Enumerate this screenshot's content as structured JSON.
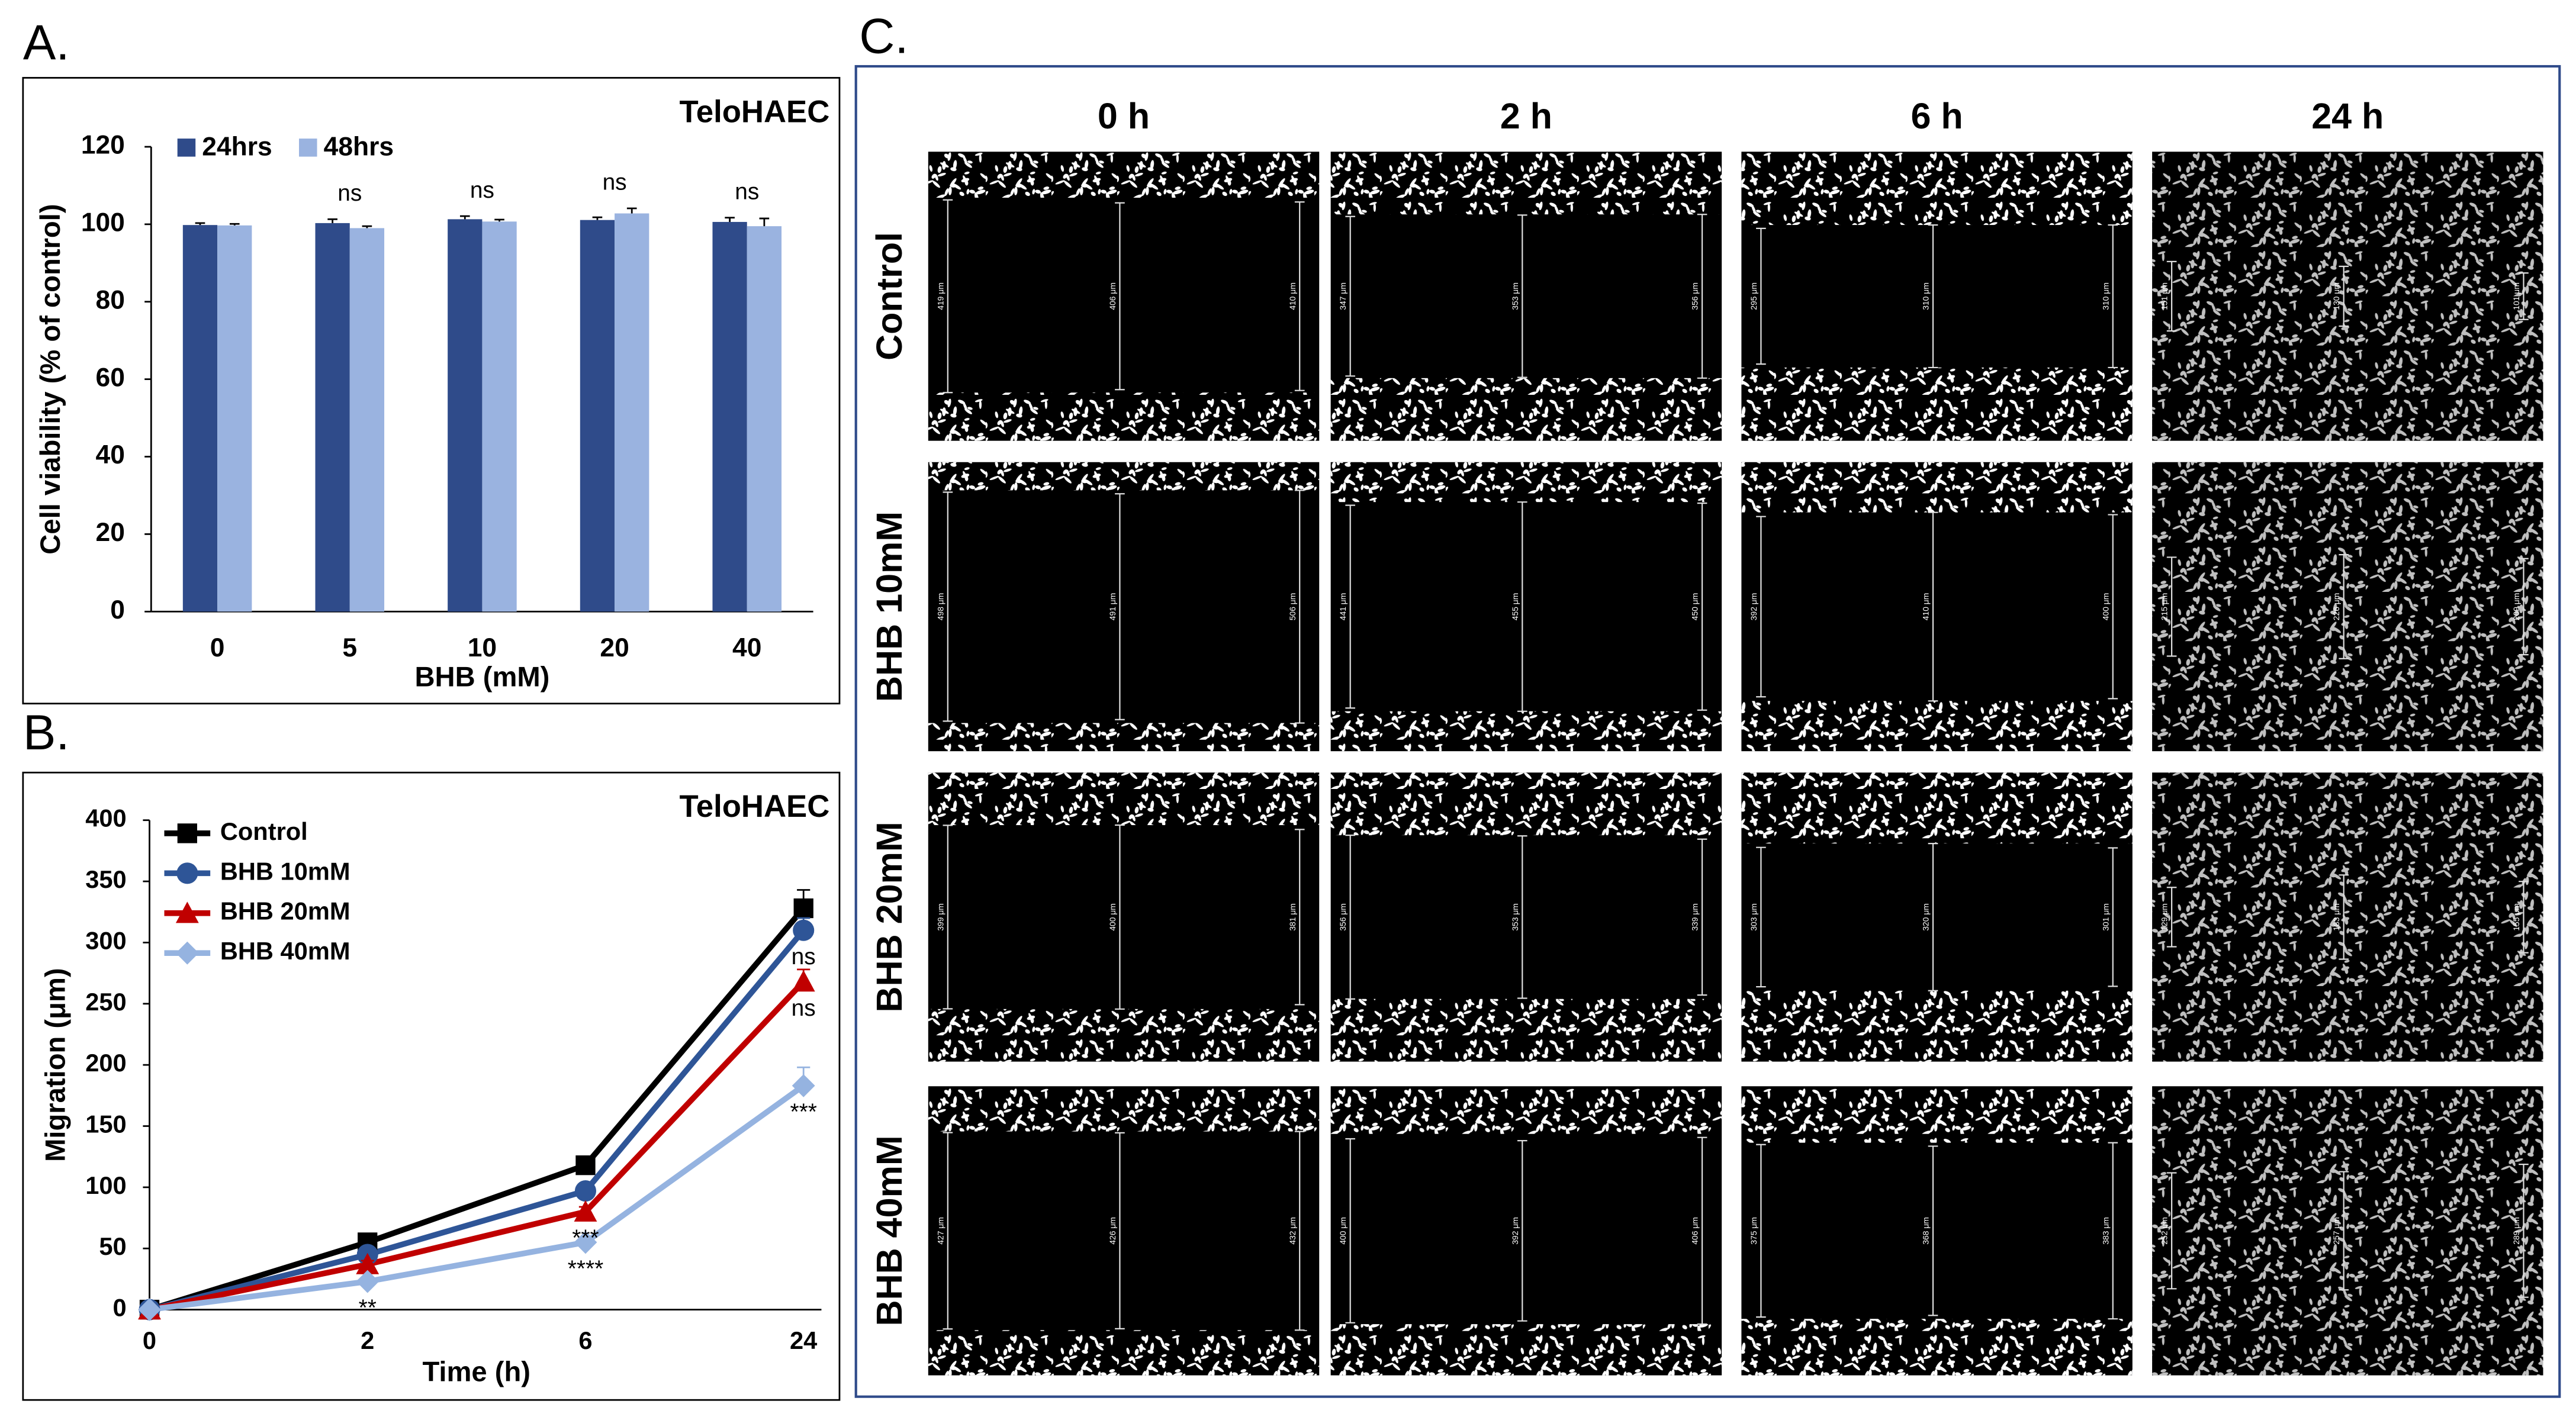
{
  "figure": {
    "panel_labels": [
      "A.",
      "B.",
      "C."
    ]
  },
  "chart_data": [
    {
      "type": "bar",
      "title": "TeloHAEC",
      "x_label": "BHB (mM)",
      "y_label": "Cell viability (% of control)",
      "categories": [
        "0",
        "5",
        "10",
        "20",
        "40"
      ],
      "series": [
        {
          "name": "24hrs",
          "color": "#2f4b8a",
          "values": [
            99.8,
            100.3,
            101.3,
            101.1,
            100.6
          ],
          "errors": [
            0.5,
            1.0,
            0.8,
            0.7,
            1.1
          ]
        },
        {
          "name": "48hrs",
          "color": "#9ab3e0",
          "values": [
            99.7,
            99.0,
            100.7,
            102.8,
            99.5
          ],
          "errors": [
            0.4,
            0.5,
            0.5,
            1.3,
            2.0
          ]
        }
      ],
      "annotations": [
        null,
        "ns",
        "ns",
        "ns",
        "ns"
      ],
      "ylim": [
        0,
        120
      ],
      "yticks": [
        0,
        20,
        40,
        60,
        80,
        100,
        120
      ],
      "legend": "top-left",
      "grid": false
    },
    {
      "type": "line",
      "title": "TeloHAEC",
      "x_label": "Time (h)",
      "y_label": "Migration (μm)",
      "categories": [
        "0",
        "2",
        "6",
        "24"
      ],
      "series": [
        {
          "name": "Control",
          "color": "#000000",
          "marker": "square",
          "values": [
            0,
            55,
            118,
            328
          ],
          "errors": [
            0,
            3,
            4,
            15
          ]
        },
        {
          "name": "BHB 10mM",
          "color": "#2e5597",
          "marker": "circle",
          "values": [
            0,
            45,
            97,
            310
          ],
          "errors": [
            0,
            3,
            4,
            10
          ]
        },
        {
          "name": "BHB 20mM",
          "color": "#c00000",
          "marker": "triangle",
          "values": [
            0,
            37,
            80,
            268
          ],
          "errors": [
            0,
            3,
            4,
            10
          ]
        },
        {
          "name": "BHB 40mM",
          "color": "#95b3e0",
          "marker": "diamond",
          "values": [
            0,
            23,
            55,
            183
          ],
          "errors": [
            0,
            3,
            4,
            15
          ]
        }
      ],
      "annotations": [
        {
          "text": "ns",
          "x": "24",
          "series": "BHB 10mM"
        },
        {
          "text": "ns",
          "x": "24",
          "series": "BHB 20mM"
        },
        {
          "text": "***",
          "x": "24",
          "series": "BHB 40mM"
        },
        {
          "text": "***",
          "x": "6",
          "series": "BHB 20mM"
        },
        {
          "text": "****",
          "x": "6",
          "series": "BHB 40mM"
        },
        {
          "text": "**",
          "x": "2",
          "series": "BHB 40mM"
        }
      ],
      "ylim": [
        0,
        400
      ],
      "yticks": [
        0,
        50,
        100,
        150,
        200,
        250,
        300,
        350,
        400
      ],
      "legend": "top-left",
      "grid": false
    }
  ],
  "wound_images": {
    "columns": [
      "0 h",
      "2 h",
      "6 h",
      "24 h"
    ],
    "rows": [
      {
        "label": "Control",
        "gaps": [
          [
            419,
            406,
            410
          ],
          [
            347,
            353,
            356
          ],
          [
            295,
            310,
            310
          ],
          [
            151,
            130,
            101
          ]
        ],
        "gap_labels": [
          [
            "419 μm",
            "406 μm",
            "410 μm"
          ],
          [
            "347 μm",
            "353 μm",
            "356 μm"
          ],
          [
            "295 μm",
            "310 μm",
            "310 μm"
          ],
          [
            "151 μm",
            "130 μm",
            "101 μm"
          ]
        ]
      },
      {
        "label": "BHB 10mM",
        "gaps": [
          [
            498,
            491,
            506
          ],
          [
            441,
            455,
            450
          ],
          [
            392,
            410,
            400
          ],
          [
            215,
            226,
            209
          ]
        ],
        "gap_labels": [
          [
            "498 μm",
            "491 μm",
            "506 μm"
          ],
          [
            "441 μm",
            "455 μm",
            "450 μm"
          ],
          [
            "392 μm",
            "410 μm",
            "400 μm"
          ],
          [
            "215 μm",
            "226 μm",
            "209 μm"
          ]
        ]
      },
      {
        "label": "BHB 20mM",
        "gaps": [
          [
            399,
            400,
            381
          ],
          [
            356,
            353,
            339
          ],
          [
            303,
            320,
            301
          ],
          [
            129,
            183,
            155
          ]
        ],
        "gap_labels": [
          [
            "399 μm",
            "400 μm",
            "381 μm"
          ],
          [
            "356 μm",
            "353 μm",
            "339 μm"
          ],
          [
            "303 μm",
            "320 μm",
            "301 μm"
          ],
          [
            "129 μm",
            "183 μm",
            "155 μm"
          ]
        ]
      },
      {
        "label": "BHB 40mM",
        "gaps": [
          [
            427,
            426,
            432
          ],
          [
            400,
            392,
            406
          ],
          [
            375,
            368,
            383
          ],
          [
            252,
            257,
            289
          ]
        ],
        "gap_labels": [
          [
            "427 μm",
            "426 μm",
            "432 μm"
          ],
          [
            "400 μm",
            "392 μm",
            "406 μm"
          ],
          [
            "375 μm",
            "368 μm",
            "383 μm"
          ],
          [
            "252 μm",
            "257 μm",
            "289 μm"
          ]
        ]
      }
    ]
  }
}
